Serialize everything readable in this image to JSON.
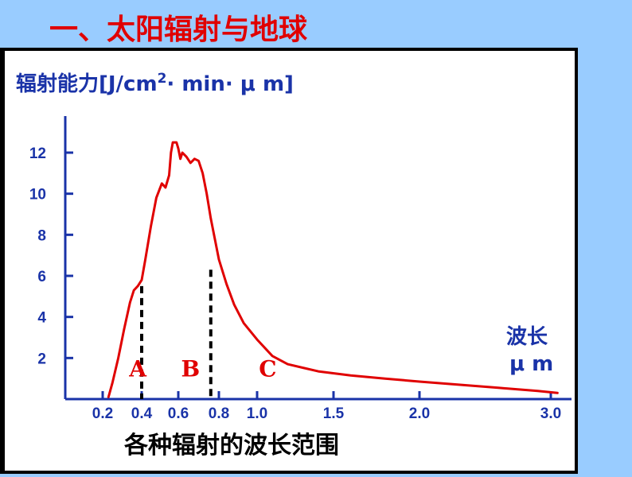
{
  "slide": {
    "title": "一、太阳辐射与地球"
  },
  "chart_data": {
    "type": "line",
    "ylabel_prefix": "辐射能力[J/cm",
    "ylabel_sup": "2",
    "ylabel_suffix": "· min· μ m]",
    "xlabel": "各种辐射的波长范围",
    "xunit_line1": "波长",
    "xunit_line2": "μ m",
    "xlim": [
      0.2,
      3.1
    ],
    "ylim": [
      0,
      13.5
    ],
    "x_ticks": [
      0.2,
      0.4,
      0.6,
      0.8,
      1.0,
      1.5,
      2.0,
      3.0
    ],
    "x_tick_labels": [
      "0.2",
      "0.4",
      "0.6",
      "0.8",
      "1.0",
      "1.5",
      "2.0",
      "3.0"
    ],
    "y_ticks": [
      2,
      4,
      6,
      8,
      10,
      12
    ],
    "y_tick_labels": [
      "2",
      "4",
      "6",
      "8",
      "10",
      "12"
    ],
    "series": [
      {
        "color": "#e00000",
        "x": [
          0.23,
          0.25,
          0.28,
          0.31,
          0.34,
          0.36,
          0.38,
          0.4,
          0.42,
          0.45,
          0.48,
          0.51,
          0.53,
          0.55,
          0.56,
          0.57,
          0.59,
          0.6,
          0.61,
          0.62,
          0.64,
          0.66,
          0.68,
          0.7,
          0.72,
          0.74,
          0.76,
          0.78,
          0.8,
          0.84,
          0.88,
          0.93,
          1.0,
          1.1,
          1.2,
          1.4,
          1.6,
          1.8,
          2.0,
          2.3,
          2.6,
          2.9,
          3.05
        ],
        "y": [
          0.1,
          0.8,
          2.0,
          3.4,
          4.7,
          5.3,
          5.5,
          5.8,
          6.8,
          8.4,
          9.8,
          10.5,
          10.3,
          10.9,
          12.0,
          12.5,
          12.5,
          12.2,
          11.7,
          12.0,
          11.8,
          11.5,
          11.7,
          11.6,
          11.0,
          10.0,
          8.8,
          7.8,
          6.8,
          5.6,
          4.6,
          3.7,
          2.9,
          2.1,
          1.7,
          1.35,
          1.15,
          1.0,
          0.85,
          0.7,
          0.55,
          0.4,
          0.3
        ]
      }
    ],
    "bands": [
      {
        "label": "A",
        "label_x": 0.38
      },
      {
        "label": "B",
        "label_x": 0.66
      },
      {
        "label": "C",
        "label_x": 1.07
      }
    ],
    "dividers": [
      {
        "x": 0.4,
        "y_top": 5.5
      },
      {
        "x": 0.76,
        "y_top": 6.3
      }
    ],
    "colors": {
      "axis": "#1a33a8",
      "curve": "#e00000",
      "divider": "#000000",
      "band_label": "#e00000"
    }
  }
}
